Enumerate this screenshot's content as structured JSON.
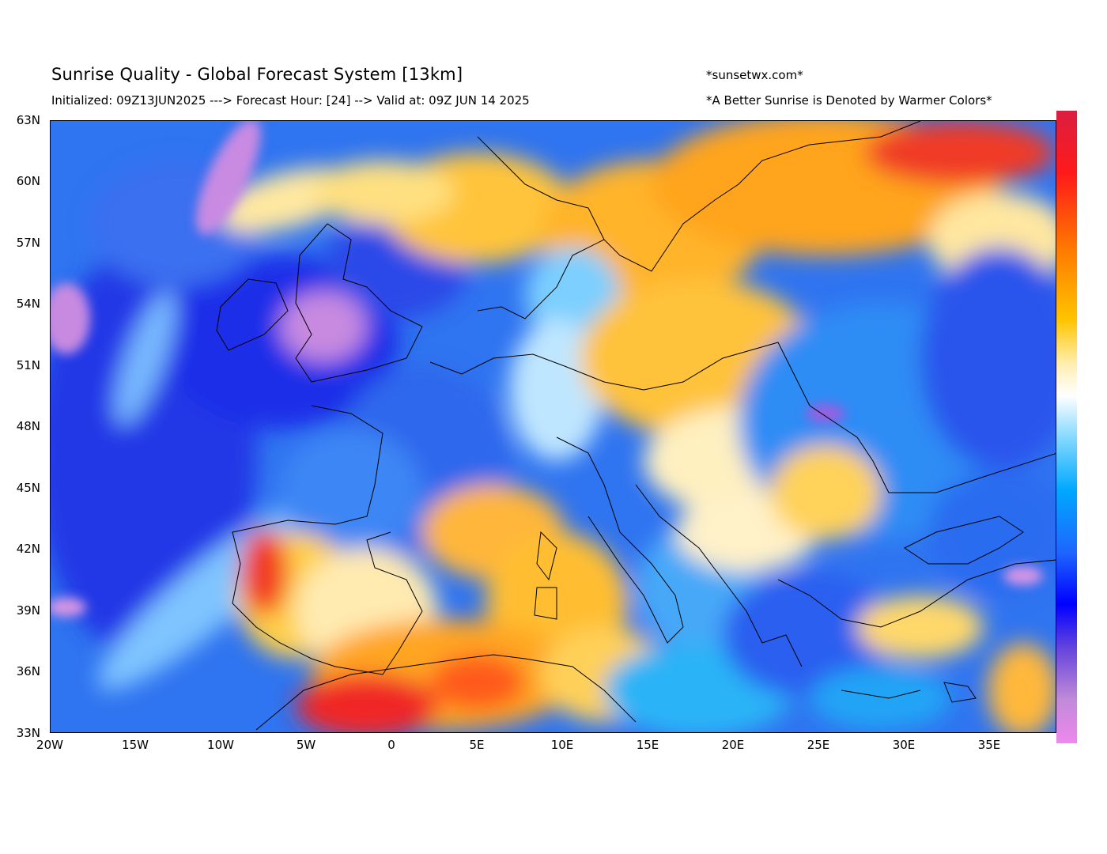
{
  "header": {
    "title": "Sunrise Quality - Global Forecast System [13km]",
    "subtitle": "Initialized: 09Z13JUN2025 ---> Forecast Hour: [24] --> Valid at: 09Z JUN 14 2025",
    "credit": "*sunsetwx.com*",
    "note": "*A Better Sunrise is Denoted by Warmer Colors*"
  },
  "map": {
    "region": "Europe / Mediterranean",
    "lat_range": [
      33,
      63
    ],
    "lon_range": [
      -20,
      39
    ],
    "lat_ticks": [
      "63N",
      "60N",
      "57N",
      "54N",
      "51N",
      "48N",
      "45N",
      "42N",
      "39N",
      "36N",
      "33N"
    ],
    "lon_ticks": [
      "20W",
      "15W",
      "10W",
      "5W",
      "0",
      "5E",
      "10E",
      "15E",
      "20E",
      "25E",
      "30E",
      "35E"
    ]
  },
  "colorbar": {
    "orientation": "vertical",
    "colors": [
      "#dc1e40",
      "#ff1a1a",
      "#ff7a00",
      "#ffc400",
      "#ffeeb0",
      "#ffffff",
      "#7fd7ff",
      "#00a8ff",
      "#1e64ff",
      "#0000ff",
      "#6644dd",
      "#c08ad8",
      "#ee88ee"
    ]
  },
  "colors": {
    "ocean_blue": "#2d6ff2",
    "deep_blue": "#1a2ee8",
    "cyan": "#1aa8f5",
    "pale": "#fff3cf",
    "yellow": "#ffd24a",
    "orange": "#ffaa1e",
    "red": "#f02828",
    "pink": "#d890e0"
  }
}
